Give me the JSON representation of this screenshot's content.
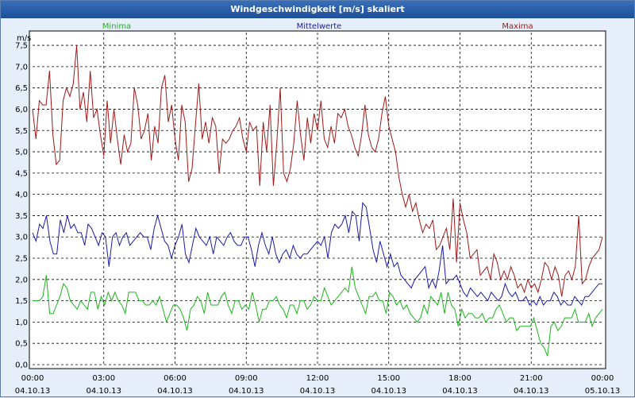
{
  "window": {
    "title": "Windgeschwindigkeit [m/s] skaliert"
  },
  "colors": {
    "min": "#1bb51b",
    "mean": "#1a1aa8",
    "max": "#a01818",
    "grid": "#000000",
    "plot_bg": "#ffffff"
  },
  "chart_data": {
    "type": "line",
    "title": "Windgeschwindigkeit [m/s] skaliert",
    "ylabel": "m/s",
    "xlabel": "",
    "ylim": [
      0,
      7.8
    ],
    "xlim": [
      0,
      24
    ],
    "yticks": [
      "0,0",
      "0,5",
      "1,0",
      "1,5",
      "2,0",
      "2,5",
      "3,0",
      "3,5",
      "4,0",
      "4,5",
      "5,0",
      "5,5",
      "6,0",
      "6,5",
      "7,0",
      "7,5"
    ],
    "xticks": [
      {
        "time": "00:00",
        "date": "04.10.13"
      },
      {
        "time": "03:00",
        "date": "04.10.13"
      },
      {
        "time": "06:00",
        "date": "04.10.13"
      },
      {
        "time": "09:00",
        "date": "04.10.13"
      },
      {
        "time": "12:00",
        "date": "04.10.13"
      },
      {
        "time": "15:00",
        "date": "04.10.13"
      },
      {
        "time": "18:00",
        "date": "04.10.13"
      },
      {
        "time": "21:00",
        "date": "04.10.13"
      },
      {
        "time": "00:00",
        "date": "05.10.13"
      }
    ],
    "legend": [
      "Minima",
      "Mittelwerte",
      "Maxima"
    ],
    "series": [
      {
        "name": "Minima",
        "color": "#1bb51b",
        "values": [
          1.5,
          1.5,
          1.5,
          1.6,
          2.1,
          1.2,
          1.2,
          1.4,
          1.6,
          1.9,
          1.8,
          1.5,
          1.4,
          1.3,
          1.5,
          1.4,
          1.3,
          1.7,
          1.7,
          1.3,
          1.6,
          1.4,
          1.7,
          1.5,
          1.7,
          1.5,
          1.4,
          1.2,
          1.7,
          1.7,
          1.7,
          1.5,
          1.5,
          1.4,
          1.4,
          1.5,
          1.4,
          1.6,
          1.3,
          1.0,
          1.2,
          1.4,
          1.4,
          1.3,
          1.1,
          0.8,
          1.3,
          1.4,
          1.6,
          1.5,
          1.2,
          1.7,
          1.4,
          1.4,
          1.4,
          1.6,
          1.7,
          1.4,
          1.2,
          1.5,
          1.5,
          1.3,
          1.4,
          1.3,
          1.7,
          1.4,
          1.0,
          1.3,
          1.3,
          1.5,
          1.5,
          1.6,
          1.4,
          1.3,
          1.1,
          1.4,
          1.4,
          1.2,
          1.5,
          1.5,
          1.3,
          1.4,
          1.6,
          1.5,
          1.5,
          1.8,
          1.6,
          1.4,
          1.5,
          1.6,
          1.7,
          1.8,
          1.7,
          2.3,
          1.8,
          1.6,
          1.4,
          1.2,
          1.6,
          1.6,
          1.7,
          1.5,
          1.5,
          1.2,
          1.7,
          1.6,
          1.4,
          1.5,
          1.3,
          1.4,
          1.2,
          1.1,
          1.0,
          1.1,
          1.4,
          1.2,
          1.6,
          1.5,
          1.4,
          1.7,
          1.2,
          1.7,
          1.4,
          1.3,
          0.9,
          1.3,
          1.1,
          1.2,
          1.2,
          1.1,
          1.1,
          1.2,
          1.0,
          1.1,
          1.1,
          1.3,
          1.4,
          1.2,
          1.0,
          1.1,
          1.1,
          0.8,
          0.9,
          0.9,
          0.9,
          0.9,
          1.1,
          0.8,
          0.5,
          0.4,
          0.2,
          0.9,
          1.0,
          0.8,
          0.9,
          1.1,
          1.1,
          1.1,
          1.3,
          1.0,
          1.0,
          1.0,
          1.2,
          0.9,
          1.1,
          1.2,
          1.3
        ]
      },
      {
        "name": "Mittelwerte",
        "color": "#1a1aa8",
        "values": [
          3.1,
          2.9,
          3.3,
          3.2,
          3.5,
          2.9,
          2.6,
          2.6,
          3.4,
          3.1,
          3.5,
          3.2,
          3.3,
          3.1,
          3.1,
          2.8,
          3.3,
          3.2,
          3.0,
          2.8,
          3.1,
          3.0,
          2.3,
          3.0,
          3.1,
          2.8,
          3.0,
          3.1,
          2.8,
          2.9,
          3.0,
          3.1,
          3.0,
          3.0,
          2.7,
          3.2,
          3.5,
          3.2,
          2.9,
          2.8,
          2.5,
          2.8,
          3.0,
          3.3,
          2.6,
          2.4,
          2.8,
          3.2,
          3.0,
          2.9,
          2.8,
          3.0,
          2.6,
          3.0,
          2.9,
          2.8,
          3.0,
          3.1,
          2.9,
          2.8,
          2.8,
          3.0,
          3.0,
          2.7,
          2.3,
          2.8,
          3.1,
          2.8,
          2.6,
          3.0,
          2.6,
          2.4,
          2.6,
          2.7,
          2.5,
          2.8,
          2.6,
          2.5,
          2.6,
          2.6,
          2.7,
          2.8,
          2.9,
          2.8,
          3.0,
          2.5,
          3.1,
          3.3,
          3.2,
          3.3,
          3.5,
          3.1,
          3.6,
          3.5,
          2.9,
          3.8,
          3.7,
          3.2,
          2.7,
          2.4,
          2.9,
          2.6,
          2.3,
          2.6,
          2.3,
          2.4,
          2.1,
          2.0,
          1.9,
          1.8,
          2.0,
          2.1,
          2.2,
          2.3,
          1.8,
          2.0,
          1.8,
          2.2,
          2.8,
          1.9,
          2.0,
          2.0,
          2.1,
          1.9,
          1.7,
          1.6,
          1.8,
          1.7,
          1.6,
          1.7,
          1.6,
          1.5,
          1.7,
          1.6,
          1.5,
          1.6,
          1.9,
          1.7,
          1.6,
          1.7,
          1.5,
          1.5,
          1.6,
          1.4,
          1.5,
          1.4,
          1.6,
          1.4,
          1.5,
          1.5,
          1.7,
          1.6,
          1.4,
          1.5,
          1.4,
          1.4,
          1.6,
          1.5,
          1.4,
          1.6,
          1.6,
          1.7,
          1.8,
          1.9,
          1.9
        ]
      },
      {
        "name": "Maxima",
        "color": "#a01818",
        "values": [
          6.0,
          5.3,
          6.2,
          6.1,
          6.1,
          6.9,
          5.4,
          4.7,
          4.8,
          6.2,
          6.5,
          6.3,
          6.6,
          7.5,
          6.0,
          6.4,
          5.7,
          6.9,
          5.8,
          6.0,
          5.4,
          4.9,
          6.2,
          5.2,
          6.0,
          5.3,
          4.7,
          5.4,
          5.0,
          5.2,
          6.5,
          6.1,
          5.3,
          5.5,
          5.9,
          4.8,
          5.6,
          5.2,
          6.5,
          6.8,
          5.7,
          6.1,
          5.3,
          4.8,
          6.1,
          5.7,
          4.3,
          4.6,
          5.6,
          6.6,
          5.3,
          5.7,
          5.2,
          5.8,
          5.6,
          4.5,
          5.3,
          5.2,
          5.3,
          5.5,
          5.6,
          5.8,
          5.3,
          5.0,
          5.7,
          5.5,
          5.6,
          4.2,
          5.7,
          5.0,
          6.1,
          4.2,
          5.2,
          6.5,
          4.5,
          4.3,
          4.6,
          5.2,
          6.2,
          5.4,
          4.8,
          5.8,
          5.2,
          5.9,
          5.5,
          6.2,
          5.3,
          5.1,
          5.6,
          5.2,
          5.9,
          5.8,
          6.0,
          5.6,
          5.4,
          5.1,
          4.9,
          5.4,
          6.1,
          5.4,
          5.1,
          5.0,
          5.3,
          5.9,
          6.3,
          5.6,
          5.3,
          5.0,
          4.4,
          4.0,
          3.7,
          4.0,
          3.6,
          3.8,
          3.4,
          3.1,
          3.3,
          3.2,
          3.4,
          2.7,
          2.8,
          3.0,
          3.2,
          2.7,
          3.9,
          2.4,
          3.8,
          3.4,
          3.1,
          2.5,
          2.6,
          2.7,
          2.1,
          2.2,
          2.3,
          2.0,
          2.6,
          2.4,
          2.0,
          2.2,
          2.0,
          2.3,
          2.1,
          1.8,
          1.9,
          1.7,
          2.0,
          1.8,
          1.9,
          1.7,
          2.0,
          2.4,
          2.3,
          2.0,
          2.3,
          2.1,
          1.6,
          2.1,
          2.2,
          2.0,
          2.3,
          3.5,
          1.9,
          2.0,
          2.3,
          2.5,
          2.6,
          2.7,
          3.0
        ]
      }
    ]
  }
}
